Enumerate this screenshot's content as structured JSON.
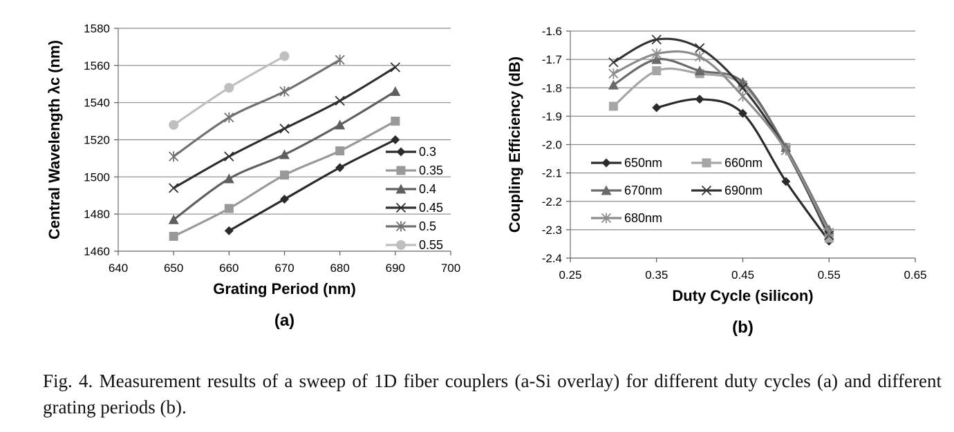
{
  "chart_data": [
    {
      "type": "line",
      "panel_label": "(a)",
      "xlabel": "Grating Period (nm)",
      "ylabel": "Central Wavelength λc (nm)",
      "xlim": [
        640,
        700
      ],
      "ylim": [
        1460,
        1580
      ],
      "xticks": [
        640,
        650,
        660,
        670,
        680,
        690,
        700
      ],
      "yticks": [
        1460,
        1480,
        1500,
        1520,
        1540,
        1560,
        1580
      ],
      "grid": "horizontal",
      "legend_position": "right",
      "series": [
        {
          "name": "0.3",
          "color": "#2b2b2b",
          "marker": "diamond",
          "x": [
            660,
            670,
            680,
            690
          ],
          "y": [
            1471,
            1488,
            1505,
            1520
          ]
        },
        {
          "name": "0.35",
          "color": "#999999",
          "marker": "square",
          "x": [
            650,
            660,
            670,
            680,
            690
          ],
          "y": [
            1468,
            1483,
            1501,
            1514,
            1530
          ]
        },
        {
          "name": "0.4",
          "color": "#5f5f5f",
          "marker": "triangle",
          "x": [
            650,
            660,
            670,
            680,
            690
          ],
          "y": [
            1477,
            1499,
            1512,
            1528,
            1546
          ]
        },
        {
          "name": "0.45",
          "color": "#2e2e2e",
          "marker": "x",
          "x": [
            650,
            660,
            670,
            680,
            690
          ],
          "y": [
            1494,
            1511,
            1526,
            1541,
            1559
          ]
        },
        {
          "name": "0.5",
          "color": "#707070",
          "marker": "star",
          "x": [
            650,
            660,
            670,
            680
          ],
          "y": [
            1511,
            1532,
            1546,
            1563
          ]
        },
        {
          "name": "0.55",
          "color": "#bfbfbf",
          "marker": "circle",
          "x": [
            650,
            660,
            670
          ],
          "y": [
            1528,
            1548,
            1565
          ]
        }
      ]
    },
    {
      "type": "line",
      "panel_label": "(b)",
      "xlabel": "Duty Cycle (silicon)",
      "ylabel": "Coupling Efficiency (dB)",
      "xlim": [
        0.25,
        0.65
      ],
      "ylim": [
        -2.4,
        -1.6
      ],
      "xticks": [
        "0.25",
        "0.35",
        "0.45",
        "0.55",
        "0.65"
      ],
      "yticks": [
        "-2.4",
        "-2.3",
        "-2.2",
        "-2.1",
        "-2.0",
        "-1.9",
        "-1.8",
        "-1.7",
        "-1.6"
      ],
      "grid": "horizontal",
      "legend_position": "inside-left",
      "series": [
        {
          "name": "650nm",
          "color": "#2b2b2b",
          "marker": "diamond",
          "x": [
            0.35,
            0.4,
            0.45,
            0.5,
            0.55
          ],
          "y": [
            -1.87,
            -1.84,
            -1.89,
            -2.13,
            -2.34
          ]
        },
        {
          "name": "660nm",
          "color": "#a6a6a6",
          "marker": "square",
          "x": [
            0.3,
            0.35,
            0.4,
            0.45,
            0.5,
            0.55
          ],
          "y": [
            -1.865,
            -1.74,
            -1.75,
            -1.79,
            -2.01,
            -2.33
          ]
        },
        {
          "name": "670nm",
          "color": "#6a6a6a",
          "marker": "triangle",
          "x": [
            0.3,
            0.35,
            0.4,
            0.45,
            0.5,
            0.55
          ],
          "y": [
            -1.79,
            -1.7,
            -1.74,
            -1.78,
            -2.01,
            -2.3
          ]
        },
        {
          "name": "690nm",
          "color": "#333333",
          "marker": "x",
          "x": [
            0.3,
            0.35,
            0.4,
            0.45,
            0.5,
            0.55
          ],
          "y": [
            -1.71,
            -1.63,
            -1.66,
            -1.8,
            -2.02,
            -2.32
          ]
        },
        {
          "name": "680nm",
          "color": "#8c8c8c",
          "marker": "star",
          "x": [
            0.3,
            0.35,
            0.4,
            0.45,
            0.5,
            0.55
          ],
          "y": [
            -1.75,
            -1.68,
            -1.69,
            -1.83,
            -2.02,
            -2.31
          ]
        }
      ]
    }
  ],
  "caption": "Fig. 4. Measurement results of a sweep of 1D fiber couplers (a-Si overlay) for different duty cycles (a) and different grating periods (b)."
}
